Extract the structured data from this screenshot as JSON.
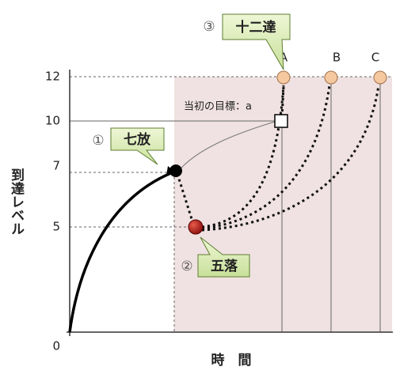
{
  "y_axis": {
    "label": "到達レベル",
    "ticks": [
      "12",
      "10",
      "7",
      "5",
      "0"
    ]
  },
  "x_axis": {
    "label": "時　間"
  },
  "callouts": [
    {
      "number": "①",
      "label": "七放"
    },
    {
      "number": "②",
      "label": "五落"
    },
    {
      "number": "③",
      "label": "十二達"
    }
  ],
  "paths": [
    "A",
    "B",
    "C"
  ],
  "target": "当初の目標：a"
}
